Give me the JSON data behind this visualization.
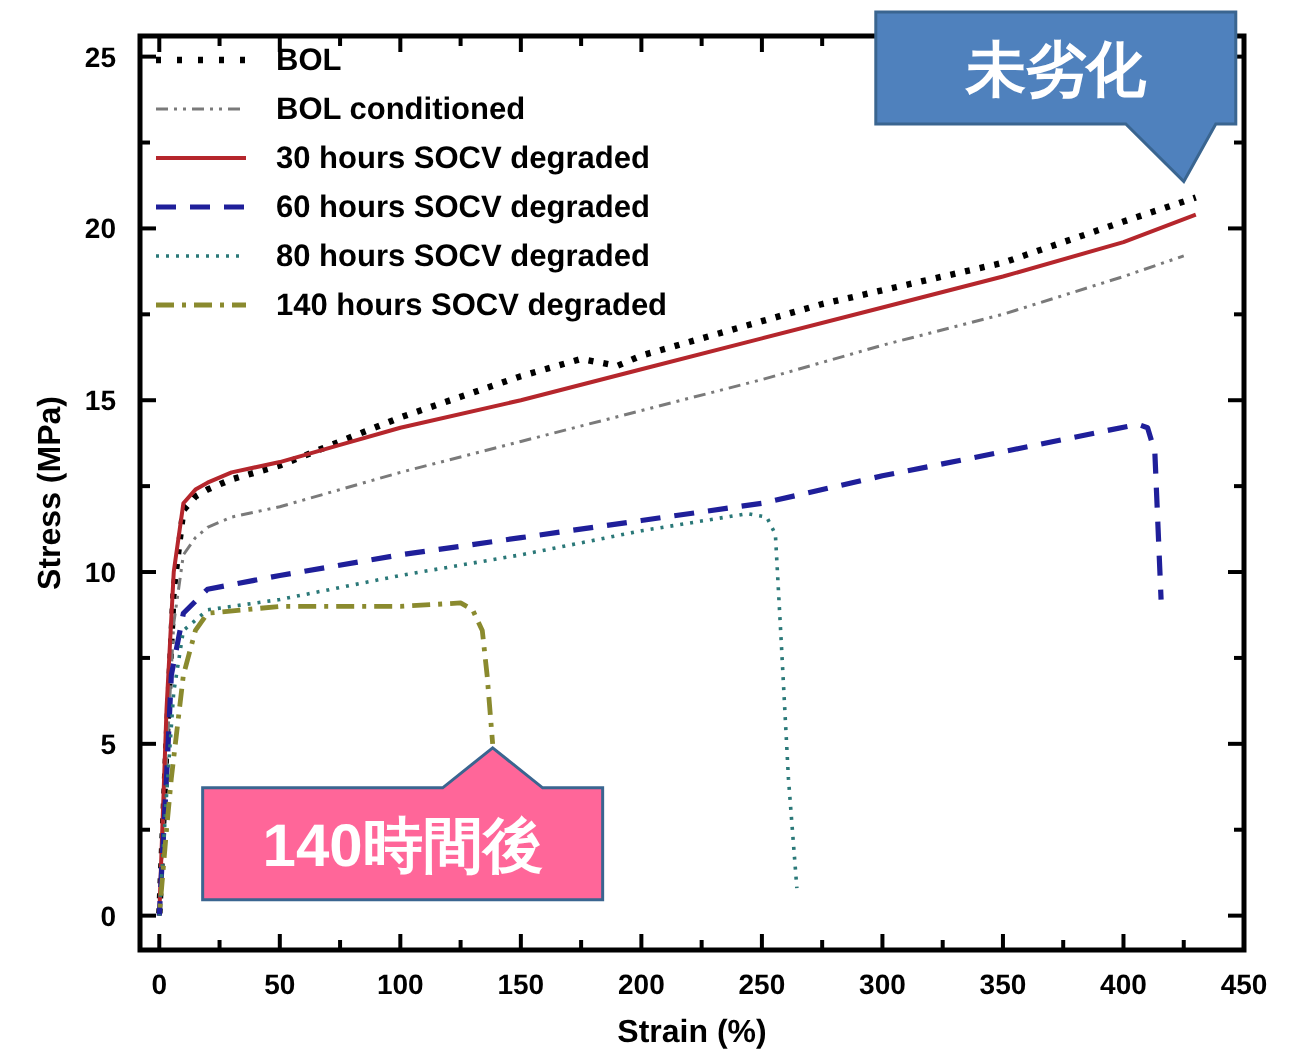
{
  "chart_data": {
    "type": "line",
    "xlabel": "Strain (%)",
    "ylabel": "Stress (MPa)",
    "xlim": [
      -8,
      450
    ],
    "ylim": [
      -1,
      25.6
    ],
    "xticks": [
      0,
      50,
      100,
      150,
      200,
      250,
      300,
      350,
      400,
      450
    ],
    "yticks": [
      0,
      5,
      10,
      15,
      20,
      25
    ],
    "legend": "top left",
    "grid": false,
    "series": [
      {
        "name": "BOL",
        "color": "#000000",
        "line_style": "dotted",
        "x": [
          0,
          3,
          6,
          10,
          15,
          20,
          30,
          50,
          75,
          100,
          125,
          150,
          175,
          190,
          200,
          225,
          250,
          275,
          300,
          325,
          350,
          375,
          400,
          430
        ],
        "values": [
          0,
          5,
          9.5,
          11.8,
          12.2,
          12.4,
          12.7,
          13.1,
          13.8,
          14.5,
          15.1,
          15.7,
          16.2,
          16.0,
          16.3,
          16.8,
          17.3,
          17.8,
          18.2,
          18.6,
          19.0,
          19.6,
          20.2,
          20.9
        ]
      },
      {
        "name": "BOL conditioned",
        "color": "#7a7a7a",
        "line_style": "dashdotdot",
        "x": [
          0,
          3,
          6,
          10,
          15,
          20,
          30,
          50,
          75,
          100,
          150,
          200,
          250,
          300,
          350,
          400,
          425
        ],
        "values": [
          0,
          4.5,
          8.5,
          10.5,
          11.0,
          11.3,
          11.6,
          11.9,
          12.4,
          12.9,
          13.8,
          14.7,
          15.6,
          16.6,
          17.5,
          18.6,
          19.2
        ]
      },
      {
        "name": "30 hours SOCV degraded",
        "color": "#b5262c",
        "line_style": "solid",
        "x": [
          0,
          3,
          6,
          10,
          15,
          20,
          30,
          50,
          75,
          100,
          150,
          200,
          250,
          300,
          350,
          400,
          430
        ],
        "values": [
          0,
          6,
          10,
          12.0,
          12.4,
          12.6,
          12.9,
          13.2,
          13.7,
          14.2,
          15.0,
          15.9,
          16.8,
          17.7,
          18.6,
          19.6,
          20.4
        ]
      },
      {
        "name": "60 hours SOCV degraded",
        "color": "#1f1f9a",
        "line_style": "dashed",
        "x": [
          0,
          3,
          5,
          10,
          20,
          50,
          100,
          150,
          200,
          250,
          300,
          350,
          406,
          410,
          413,
          415.6
        ],
        "values": [
          0,
          4,
          7,
          8.8,
          9.5,
          9.9,
          10.5,
          11.0,
          11.5,
          12.0,
          12.8,
          13.5,
          14.3,
          14.2,
          13.5,
          9.2
        ]
      },
      {
        "name": "80 hours SOCV degraded",
        "color": "#2a7878",
        "line_style": "dotted",
        "x": [
          0,
          3,
          6,
          10,
          20,
          50,
          100,
          150,
          200,
          244,
          252,
          255.6,
          258,
          261,
          264.5
        ],
        "values": [
          0,
          3.5,
          6.5,
          8.3,
          8.9,
          9.2,
          9.9,
          10.5,
          11.2,
          11.7,
          11.6,
          11.1,
          8,
          4,
          0.8
        ]
      },
      {
        "name": "140 hours SOCV degraded",
        "color": "#8a8a2e",
        "line_style": "dashdot",
        "x": [
          0,
          3,
          5,
          10,
          15,
          20,
          50,
          100,
          125,
          130,
          134,
          136,
          138.3
        ],
        "values": [
          0,
          2.5,
          4,
          7,
          8.3,
          8.8,
          9.0,
          9.0,
          9.1,
          8.9,
          8.3,
          7.0,
          5.0
        ]
      }
    ],
    "annotations": [
      {
        "text": "未劣化",
        "x": 430,
        "y": 20.9
      },
      {
        "text": "140時間後",
        "x": 138.3,
        "y": 5.0
      }
    ]
  }
}
